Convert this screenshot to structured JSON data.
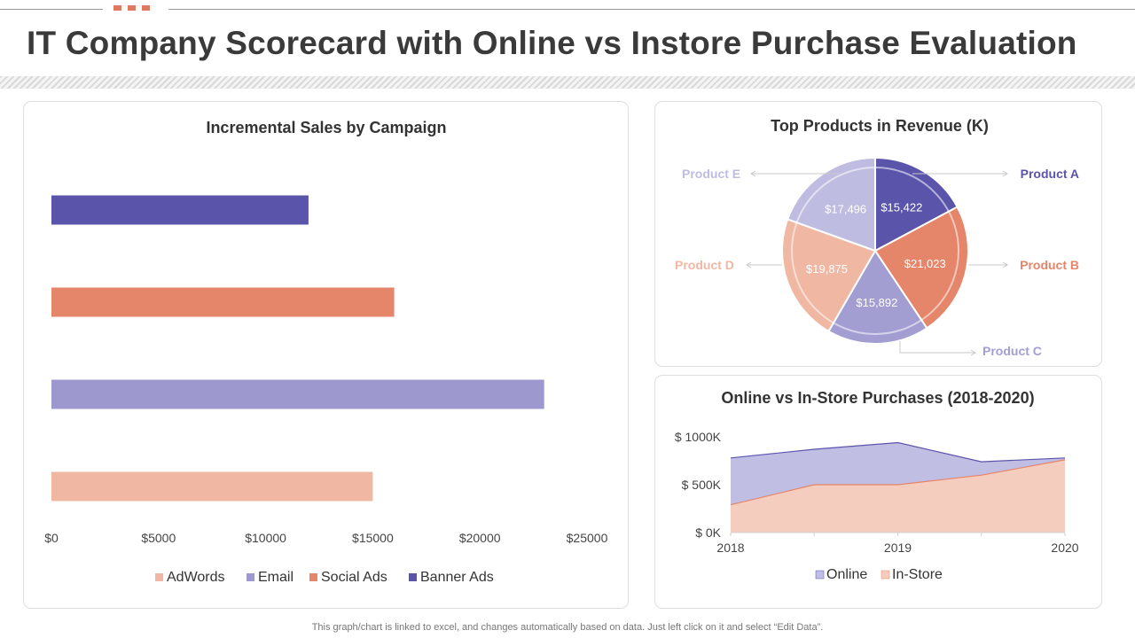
{
  "page": {
    "title": "IT Company Scorecard with Online vs Instore Purchase Evaluation",
    "footer": "This graph/chart is linked to excel,  and changes automatically based on data. Just left click on it and select “Edit Data”."
  },
  "colors": {
    "accent": "#e07a5f",
    "banner_ads": "#5b54ab",
    "social_ads": "#e5856a",
    "email": "#9d98cd",
    "adwords": "#f0b7a3",
    "product_a": "#5b54ab",
    "product_b": "#e5856a",
    "product_c": "#a29ed2",
    "product_d": "#f0b7a3",
    "product_e": "#bfbce1",
    "online": "#c1bee3",
    "online_line": "#5b54ab",
    "instore": "#f5cdbf",
    "instore_line": "#e5856a"
  },
  "chart_data": [
    {
      "type": "bar",
      "orientation": "horizontal",
      "title": "Incremental Sales by Campaign",
      "categories": [
        "Banner Ads",
        "Social Ads",
        "Email",
        "AdWords"
      ],
      "values": [
        12000,
        16000,
        23000,
        15000
      ],
      "xlim": [
        0,
        25000
      ],
      "xticks": [
        0,
        5000,
        10000,
        15000,
        20000,
        25000
      ],
      "xtick_labels": [
        "$0",
        "$5000",
        "$10000",
        "$15000",
        "$20000",
        "$25000"
      ],
      "legend": [
        "AdWords",
        "Email",
        "Social Ads",
        "Banner Ads"
      ],
      "legend_position": "bottom"
    },
    {
      "type": "pie",
      "title": "Top Products in Revenue (K)",
      "slices": [
        {
          "label": "Product A",
          "value": 15422,
          "value_label": "$15,422"
        },
        {
          "label": "Product B",
          "value": 21023,
          "value_label": "$21,023"
        },
        {
          "label": "Product C",
          "value": 15892,
          "value_label": "$15,892"
        },
        {
          "label": "Product D",
          "value": 19875,
          "value_label": "$19,875"
        },
        {
          "label": "Product E",
          "value": 17496,
          "value_label": "$17,496"
        }
      ]
    },
    {
      "type": "area",
      "title": "Online vs In-Store Purchases (2018-2020)",
      "x": [
        2018,
        2018.5,
        2019,
        2019.5,
        2020
      ],
      "xtick_labels": [
        "2018",
        "2019",
        "2020"
      ],
      "ylim": [
        0,
        1000
      ],
      "yticks": [
        0,
        500,
        1000
      ],
      "ytick_labels": [
        "$ 0K",
        "$ 500K",
        "$ 1000K"
      ],
      "series": [
        {
          "name": "Online",
          "values": [
            780,
            870,
            940,
            740,
            780
          ]
        },
        {
          "name": "In-Store",
          "values": [
            290,
            500,
            500,
            600,
            760
          ]
        }
      ],
      "legend": [
        "Online",
        "In-Store"
      ],
      "legend_position": "bottom"
    }
  ]
}
